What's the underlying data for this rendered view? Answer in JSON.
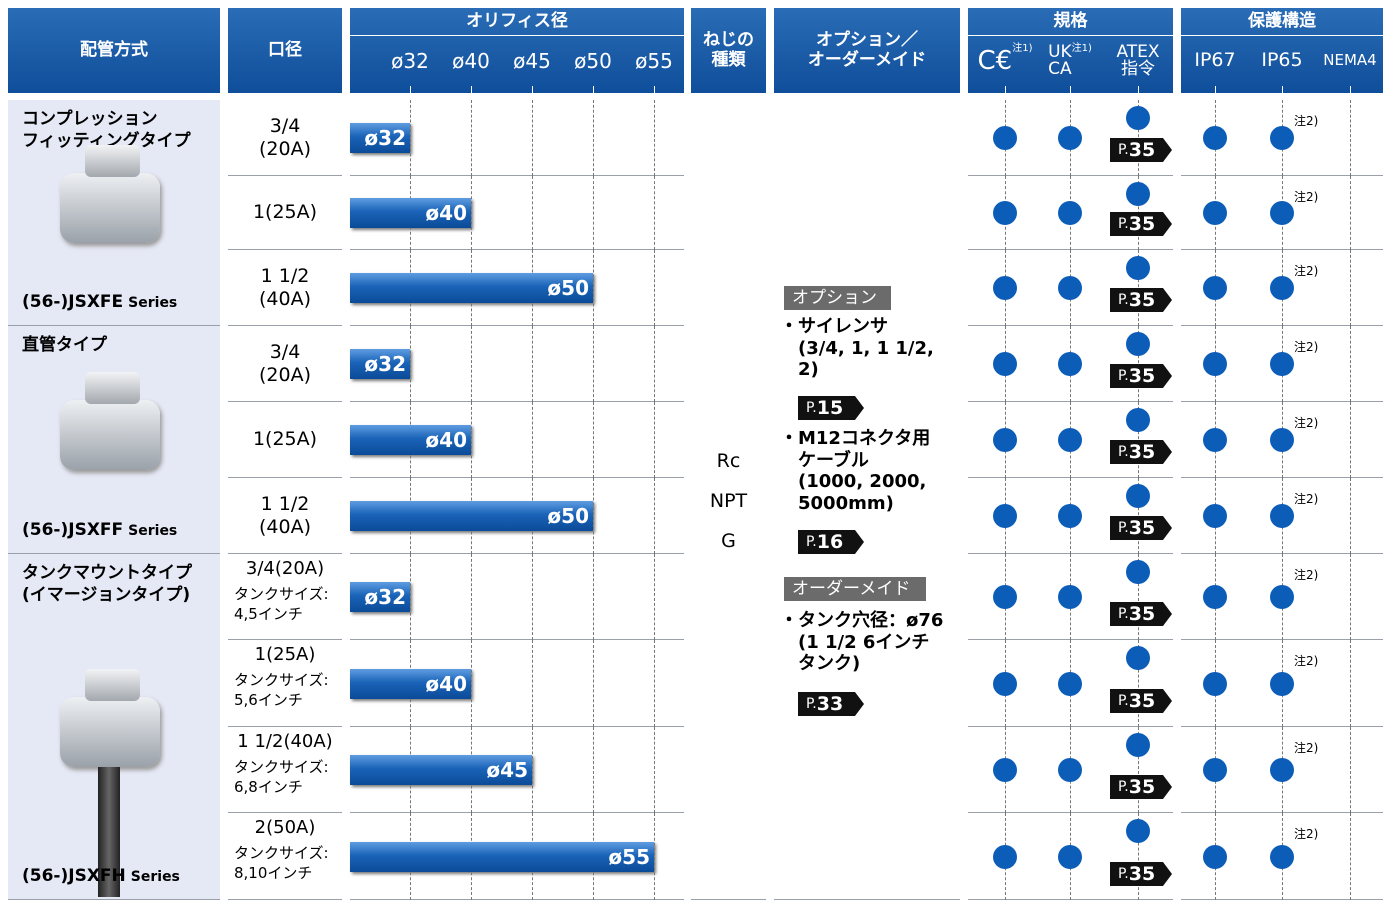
{
  "header": {
    "piping": "配管方式",
    "port": "口径",
    "orifice": {
      "title": "オリフィス径",
      "sizes": [
        "ø32",
        "ø40",
        "ø45",
        "ø50",
        "ø55"
      ]
    },
    "thread": "ねじの\n種類",
    "options": "オプション／\nオーダーメイド",
    "standards": {
      "title": "規格",
      "cols": [
        {
          "label": "C€",
          "note": "注1)"
        },
        {
          "label": "UK\nCA",
          "note": "注1)"
        },
        {
          "label": "ATEX\n指令",
          "note": null
        }
      ]
    },
    "protection": {
      "title": "保護構造",
      "cols": [
        "IP67",
        "IP65",
        "NEMA4"
      ]
    }
  },
  "groups": [
    {
      "name": "コンプレッション\nフィッティングタイプ",
      "series": "(56-)JSXFE",
      "series_suffix": "Series",
      "rows": [
        {
          "port": "3/4\n(20A)",
          "tank": null,
          "orifice": "ø32"
        },
        {
          "port": "1(25A)",
          "tank": null,
          "orifice": "ø40"
        },
        {
          "port": "1 1/2\n(40A)",
          "tank": null,
          "orifice": "ø50"
        }
      ]
    },
    {
      "name": "直管タイプ",
      "series": "(56-)JSXFF",
      "series_suffix": "Series",
      "rows": [
        {
          "port": "3/4\n(20A)",
          "tank": null,
          "orifice": "ø32"
        },
        {
          "port": "1(25A)",
          "tank": null,
          "orifice": "ø40"
        },
        {
          "port": "1 1/2\n(40A)",
          "tank": null,
          "orifice": "ø50"
        }
      ]
    },
    {
      "name": "タンクマウントタイプ\n(イマージョンタイプ)",
      "series": "(56-)JSXFH",
      "series_suffix": "Series",
      "rows": [
        {
          "port": "3/4(20A)",
          "tank": "タンクサイズ:\n4,5インチ",
          "orifice": "ø32"
        },
        {
          "port": "1(25A)",
          "tank": "タンクサイズ:\n5,6インチ",
          "orifice": "ø40"
        },
        {
          "port": "1 1/2(40A)",
          "tank": "タンクサイズ:\n6,8インチ",
          "orifice": "ø45"
        },
        {
          "port": "2(50A)",
          "tank": "タンクサイズ:\n8,10インチ",
          "orifice": "ø55"
        }
      ]
    }
  ],
  "thread_types": [
    "Rc",
    "NPT",
    "G"
  ],
  "options": {
    "option_title": "オプション",
    "option_items": [
      {
        "text": "・サイレンサ\n(3/4, 1, 1 1/2,\n2)",
        "page": "15"
      },
      {
        "text": "・M12コネクタ用\nケーブル\n(1000, 2000,\n5000mm)",
        "page": "16"
      }
    ],
    "custom_title": "オーダーメイド",
    "custom_items": [
      {
        "text": "・タンク穴径：ø76\n(1 1/2 6インチ\nタンク)",
        "page": "33"
      }
    ]
  },
  "page_prefix": "P.",
  "atex_page": "35",
  "ip65_note": "注2)"
}
